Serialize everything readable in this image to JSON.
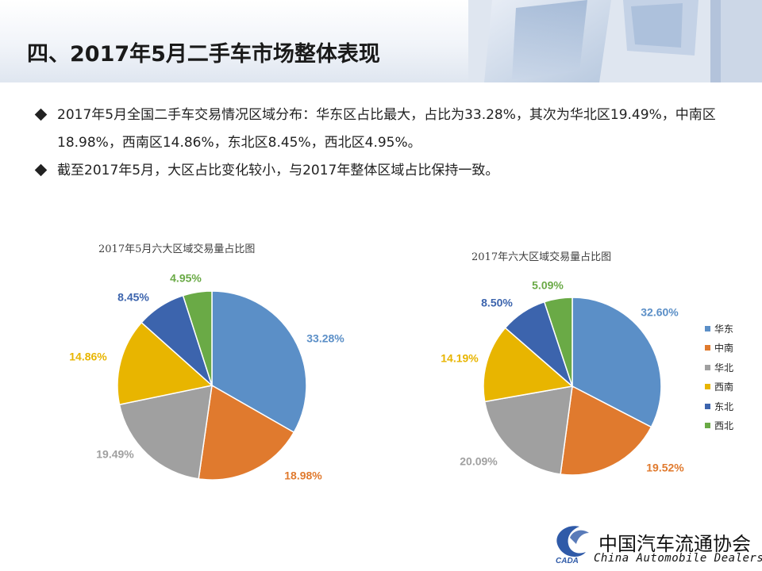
{
  "slide": {
    "title": "四、2017年5月二手车市场整体表现",
    "bullets": [
      "2017年5月全国二手车交易情况区域分布：华东区占比最大，占比为33.28%，其次为华北区19.49%，中南区18.98%，西南区14.86%，东北区8.45%，西北区4.95%。",
      "截至2017年5月，大区占比变化较小，与2017年整体区域占比保持一致。"
    ]
  },
  "legend": {
    "items": [
      {
        "label": "华东",
        "color": "#5b8fc7"
      },
      {
        "label": "中南",
        "color": "#e07a2e"
      },
      {
        "label": "华北",
        "color": "#a0a0a0"
      },
      {
        "label": "西南",
        "color": "#e8b500"
      },
      {
        "label": "东北",
        "color": "#3c64ad"
      },
      {
        "label": "西北",
        "color": "#6aaa46"
      }
    ]
  },
  "chart_data": [
    {
      "type": "pie",
      "title": "2017年5月六大区域交易量占比图",
      "categories": [
        "华东",
        "中南",
        "华北",
        "西南",
        "东北",
        "西北"
      ],
      "values": [
        33.28,
        18.98,
        19.49,
        14.86,
        8.45,
        4.95
      ],
      "labels": [
        "33.28%",
        "18.98%",
        "19.49%",
        "14.86%",
        "8.45%",
        "4.95%"
      ],
      "colors": [
        "#5b8fc7",
        "#e07a2e",
        "#a0a0a0",
        "#e8b500",
        "#3c64ad",
        "#6aaa46"
      ]
    },
    {
      "type": "pie",
      "title": "2017年六大区域交易量占比图",
      "categories": [
        "华东",
        "中南",
        "华北",
        "西南",
        "东北",
        "西北"
      ],
      "values": [
        32.6,
        19.52,
        20.09,
        14.19,
        8.5,
        5.09
      ],
      "labels": [
        "32.60%",
        "19.52%",
        "20.09%",
        "14.19%",
        "8.50%",
        "5.09%"
      ],
      "colors": [
        "#5b8fc7",
        "#e07a2e",
        "#a0a0a0",
        "#e8b500",
        "#3c64ad",
        "#6aaa46"
      ],
      "legend_position": "right"
    }
  ],
  "logo": {
    "name_cn": "中国汽车流通协会",
    "name_en": "China  Automobile Dealers",
    "mark_text": "CADA"
  }
}
